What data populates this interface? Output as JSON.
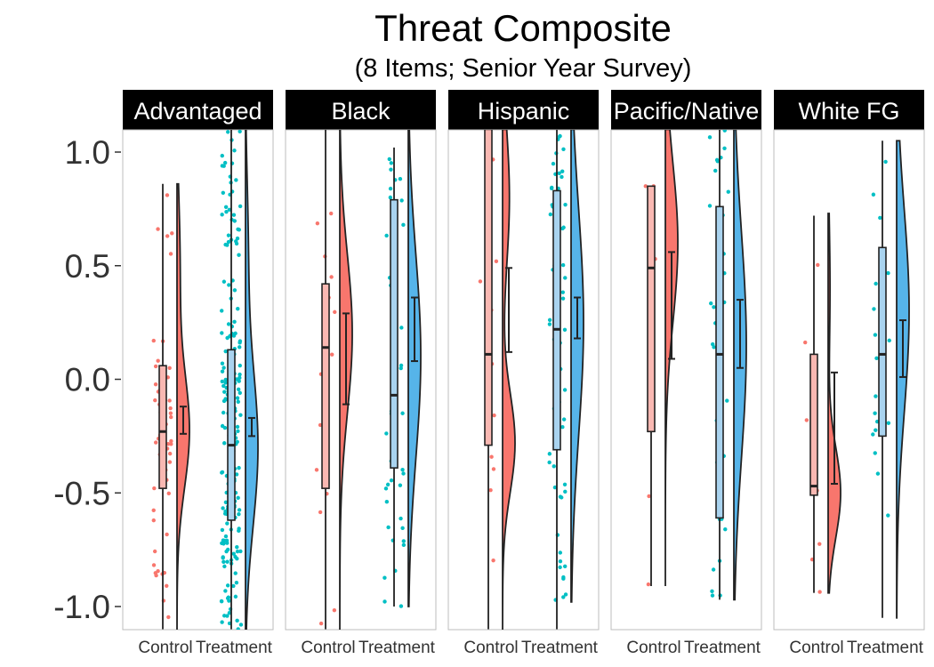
{
  "chart_data": {
    "type": "raincloud",
    "title": "Threat Composite",
    "subtitle": "(8 Items; Senior Year Survey)",
    "xlabel": "",
    "ylabel": "",
    "ylim": [
      -1.1,
      1.1
    ],
    "yticks": [
      1.0,
      0.5,
      0.0,
      -0.5,
      -1.0
    ],
    "ytick_labels": [
      "1.0",
      "0.5",
      "0.0",
      "-0.5",
      "-1.0"
    ],
    "categories": [
      "Control",
      "Treatment"
    ],
    "grid": false,
    "legend": "none",
    "colors": {
      "control_point": "#f8766d",
      "treatment_point": "#00bfc4",
      "control_violin": "#f8766d",
      "treatment_violin": "#56b4e9",
      "control_box": "#f9b8b2",
      "treatment_box": "#a9d3ef",
      "strip_bg": "#000000",
      "strip_text": "#ffffff",
      "panel_border": "#bdbdbd",
      "line": "#222222"
    },
    "panels": [
      {
        "name": "Advantaged",
        "groups": [
          {
            "group": "Control",
            "n": 60,
            "seed": 11,
            "box": {
              "q1": -0.48,
              "median": -0.23,
              "q3": 0.06,
              "whisker_low": -1.1,
              "whisker_high": 0.86
            },
            "mean": -0.18,
            "ci": [
              -0.24,
              -0.12
            ],
            "violin": {
              "min": -1.1,
              "max": 0.86,
              "peaks": [
                [
                  -0.23,
                  0.25,
                  1.0
                ],
                [
                  0.5,
                  0.3,
                  0.25
                ]
              ]
            }
          },
          {
            "group": "Treatment",
            "n": 200,
            "seed": 23,
            "box": {
              "q1": -0.62,
              "median": -0.29,
              "q3": 0.13,
              "whisker_low": -1.1,
              "whisker_high": 1.1
            },
            "mean": -0.21,
            "ci": [
              -0.25,
              -0.17
            ],
            "violin": {
              "min": -1.1,
              "max": 1.1,
              "peaks": [
                [
                  -0.3,
                  0.35,
                  1.0
                ],
                [
                  0.6,
                  0.3,
                  0.2
                ]
              ]
            }
          }
        ]
      },
      {
        "name": "Black",
        "groups": [
          {
            "group": "Control",
            "n": 14,
            "seed": 31,
            "box": {
              "q1": -0.48,
              "median": 0.14,
              "q3": 0.42,
              "whisker_low": -1.1,
              "whisker_high": 1.1
            },
            "mean": 0.09,
            "ci": [
              -0.11,
              0.29
            ],
            "violin": {
              "min": -1.1,
              "max": 1.1,
              "peaks": [
                [
                  0.2,
                  0.35,
                  1.0
                ]
              ]
            }
          },
          {
            "group": "Treatment",
            "n": 40,
            "seed": 41,
            "box": {
              "q1": -0.39,
              "median": -0.07,
              "q3": 0.79,
              "whisker_low": -1.0,
              "whisker_high": 1.02
            },
            "mean": 0.22,
            "ci": [
              0.08,
              0.36
            ],
            "violin": {
              "min": -1.0,
              "max": 1.1,
              "peaks": [
                [
                  0.1,
                  0.45,
                  1.0
                ]
              ]
            }
          }
        ]
      },
      {
        "name": "Hispanic",
        "groups": [
          {
            "group": "Control",
            "n": 14,
            "seed": 51,
            "box": {
              "q1": -0.29,
              "median": 0.11,
              "q3": 1.1,
              "whisker_low": -1.1,
              "whisker_high": 1.1
            },
            "mean": 0.31,
            "ci": [
              0.12,
              0.49
            ],
            "violin": {
              "min": -1.1,
              "max": 1.1,
              "peaks": [
                [
                  -0.28,
                  0.22,
                  1.0
                ],
                [
                  0.8,
                  0.3,
                  0.55
                ]
              ]
            }
          },
          {
            "group": "Treatment",
            "n": 60,
            "seed": 61,
            "box": {
              "q1": -0.31,
              "median": 0.22,
              "q3": 0.83,
              "whisker_low": -1.1,
              "whisker_high": 1.1
            },
            "mean": 0.27,
            "ci": [
              0.18,
              0.36
            ],
            "violin": {
              "min": -0.98,
              "max": 1.1,
              "peaks": [
                [
                  0.25,
                  0.5,
                  1.0
                ]
              ]
            }
          }
        ]
      },
      {
        "name": "Pacific/Native",
        "groups": [
          {
            "group": "Control",
            "n": 6,
            "seed": 71,
            "box": {
              "q1": -0.23,
              "median": 0.49,
              "q3": 0.85,
              "whisker_low": -0.91,
              "whisker_high": 0.85
            },
            "mean": 0.33,
            "ci": [
              0.09,
              0.56
            ],
            "violin": {
              "min": -0.91,
              "max": 1.1,
              "peaks": [
                [
                  0.6,
                  0.35,
                  1.0
                ]
              ]
            }
          },
          {
            "group": "Treatment",
            "n": 35,
            "seed": 81,
            "box": {
              "q1": -0.61,
              "median": 0.11,
              "q3": 0.76,
              "whisker_low": -0.97,
              "whisker_high": 1.1
            },
            "mean": 0.2,
            "ci": [
              0.05,
              0.35
            ],
            "violin": {
              "min": -0.97,
              "max": 1.1,
              "peaks": [
                [
                  0.15,
                  0.5,
                  1.0
                ]
              ]
            }
          }
        ]
      },
      {
        "name": "White FG",
        "groups": [
          {
            "group": "Control",
            "n": 7,
            "seed": 91,
            "box": {
              "q1": -0.51,
              "median": -0.47,
              "q3": 0.11,
              "whisker_low": -0.94,
              "whisker_high": 0.72
            },
            "mean": -0.21,
            "ci": [
              -0.46,
              0.03
            ],
            "violin": {
              "min": -0.94,
              "max": 0.73,
              "peaks": [
                [
                  -0.5,
                  0.2,
                  1.0
                ],
                [
                  0.4,
                  0.3,
                  0.15
                ]
              ]
            }
          },
          {
            "group": "Treatment",
            "n": 20,
            "seed": 97,
            "box": {
              "q1": -0.25,
              "median": 0.11,
              "q3": 0.58,
              "whisker_low": -1.05,
              "whisker_high": 1.05
            },
            "mean": 0.14,
            "ci": [
              0.01,
              0.26
            ],
            "violin": {
              "min": -1.05,
              "max": 1.05,
              "peaks": [
                [
                  0.3,
                  0.45,
                  1.0
                ]
              ]
            }
          }
        ]
      }
    ]
  }
}
